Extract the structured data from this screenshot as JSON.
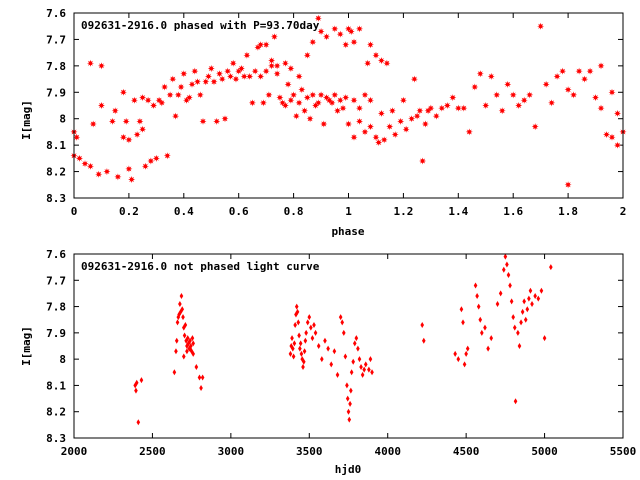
{
  "chart_data": [
    {
      "type": "scatter",
      "title": "092631-2916.0 phased with P=93.70day",
      "xlabel": "phase",
      "ylabel": "I[mag]",
      "xlim": [
        0,
        2
      ],
      "ylim": [
        8.3,
        7.6
      ],
      "y_inverted": true,
      "x_ticks": [
        "0",
        "0.2",
        "0.4",
        "0.6",
        "0.8",
        "1",
        "1.2",
        "1.4",
        "1.6",
        "1.8",
        "2"
      ],
      "y_ticks": [
        "7.6",
        "7.7",
        "7.8",
        "7.9",
        "8",
        "8.1",
        "8.2",
        "8.3"
      ],
      "marker": "filled-star",
      "color": "#ff0000",
      "points": [
        [
          0.0,
          8.05
        ],
        [
          0.0,
          8.14
        ],
        [
          0.01,
          8.07
        ],
        [
          0.02,
          8.15
        ],
        [
          0.04,
          8.17
        ],
        [
          0.06,
          8.18
        ],
        [
          0.06,
          7.79
        ],
        [
          0.07,
          8.02
        ],
        [
          0.09,
          8.21
        ],
        [
          0.1,
          7.8
        ],
        [
          0.1,
          7.95
        ],
        [
          0.12,
          8.2
        ],
        [
          0.14,
          8.01
        ],
        [
          0.15,
          7.97
        ],
        [
          0.16,
          8.22
        ],
        [
          0.18,
          7.9
        ],
        [
          0.18,
          8.07
        ],
        [
          0.19,
          8.01
        ],
        [
          0.2,
          8.19
        ],
        [
          0.2,
          8.08
        ],
        [
          0.21,
          8.23
        ],
        [
          0.22,
          7.93
        ],
        [
          0.23,
          8.06
        ],
        [
          0.24,
          8.01
        ],
        [
          0.25,
          7.92
        ],
        [
          0.25,
          8.04
        ],
        [
          0.26,
          8.18
        ],
        [
          0.27,
          7.93
        ],
        [
          0.28,
          8.16
        ],
        [
          0.29,
          7.95
        ],
        [
          0.3,
          8.15
        ],
        [
          0.31,
          7.93
        ],
        [
          0.32,
          7.94
        ],
        [
          0.33,
          7.88
        ],
        [
          0.34,
          8.14
        ],
        [
          0.35,
          7.91
        ],
        [
          0.36,
          7.85
        ],
        [
          0.37,
          7.99
        ],
        [
          0.38,
          7.91
        ],
        [
          0.39,
          7.88
        ],
        [
          0.4,
          7.83
        ],
        [
          0.41,
          7.93
        ],
        [
          0.42,
          7.92
        ],
        [
          0.43,
          7.87
        ],
        [
          0.44,
          7.82
        ],
        [
          0.45,
          7.86
        ],
        [
          0.46,
          7.91
        ],
        [
          0.47,
          8.01
        ],
        [
          0.48,
          7.86
        ],
        [
          0.49,
          7.84
        ],
        [
          0.5,
          7.81
        ],
        [
          0.51,
          7.86
        ],
        [
          0.52,
          8.01
        ],
        [
          0.53,
          7.83
        ],
        [
          0.54,
          7.85
        ],
        [
          0.55,
          8.0
        ],
        [
          0.56,
          7.82
        ],
        [
          0.57,
          7.84
        ],
        [
          0.58,
          7.79
        ],
        [
          0.59,
          7.85
        ],
        [
          0.6,
          7.82
        ],
        [
          0.61,
          7.81
        ],
        [
          0.62,
          7.84
        ],
        [
          0.63,
          7.76
        ],
        [
          0.64,
          7.84
        ],
        [
          0.65,
          7.94
        ],
        [
          0.66,
          7.82
        ],
        [
          0.67,
          7.73
        ],
        [
          0.68,
          7.72
        ],
        [
          0.69,
          7.94
        ],
        [
          0.7,
          7.72
        ],
        [
          0.71,
          7.91
        ],
        [
          0.72,
          7.8
        ],
        [
          0.73,
          7.69
        ],
        [
          0.74,
          7.8
        ],
        [
          0.75,
          7.92
        ],
        [
          0.76,
          7.94
        ],
        [
          0.77,
          7.95
        ],
        [
          0.78,
          7.87
        ],
        [
          0.79,
          7.93
        ],
        [
          0.8,
          7.91
        ],
        [
          0.81,
          7.99
        ],
        [
          0.82,
          7.94
        ],
        [
          0.83,
          7.89
        ],
        [
          0.84,
          7.97
        ],
        [
          0.85,
          7.92
        ],
        [
          0.86,
          8.0
        ],
        [
          0.87,
          7.91
        ],
        [
          0.88,
          7.95
        ],
        [
          0.89,
          7.94
        ],
        [
          0.9,
          7.91
        ],
        [
          0.91,
          8.02
        ],
        [
          0.92,
          7.92
        ],
        [
          0.93,
          7.93
        ],
        [
          0.94,
          7.94
        ],
        [
          0.95,
          7.91
        ],
        [
          0.96,
          7.97
        ],
        [
          0.97,
          7.93
        ],
        [
          0.98,
          7.96
        ],
        [
          0.99,
          7.92
        ],
        [
          0.68,
          7.84
        ],
        [
          0.7,
          7.82
        ],
        [
          0.72,
          7.78
        ],
        [
          0.74,
          7.83
        ],
        [
          0.77,
          7.79
        ],
        [
          0.79,
          7.81
        ],
        [
          0.82,
          7.84
        ],
        [
          0.85,
          7.76
        ],
        [
          0.87,
          7.71
        ],
        [
          0.89,
          7.62
        ],
        [
          0.9,
          7.67
        ],
        [
          0.92,
          7.69
        ],
        [
          0.95,
          7.66
        ],
        [
          0.97,
          7.68
        ],
        [
          0.99,
          7.72
        ],
        [
          1.0,
          7.66
        ],
        [
          1.01,
          7.67
        ],
        [
          1.02,
          7.71
        ],
        [
          1.04,
          7.66
        ],
        [
          1.07,
          7.79
        ],
        [
          1.08,
          7.72
        ],
        [
          1.1,
          7.76
        ],
        [
          1.12,
          7.78
        ],
        [
          1.14,
          7.79
        ],
        [
          1.0,
          8.02
        ],
        [
          1.02,
          8.07
        ],
        [
          1.04,
          8.01
        ],
        [
          1.06,
          8.05
        ],
        [
          1.08,
          8.03
        ],
        [
          1.1,
          8.07
        ],
        [
          1.11,
          8.09
        ],
        [
          1.13,
          8.08
        ],
        [
          1.15,
          8.03
        ],
        [
          1.17,
          8.06
        ],
        [
          1.19,
          8.01
        ],
        [
          1.21,
          8.04
        ],
        [
          1.23,
          8.0
        ],
        [
          1.25,
          7.99
        ],
        [
          1.27,
          8.16
        ],
        [
          1.29,
          7.97
        ],
        [
          1.02,
          7.93
        ],
        [
          1.04,
          7.96
        ],
        [
          1.06,
          7.91
        ],
        [
          1.08,
          7.93
        ],
        [
          1.12,
          7.98
        ],
        [
          1.16,
          7.97
        ],
        [
          1.2,
          7.93
        ],
        [
          1.24,
          7.85
        ],
        [
          1.26,
          7.97
        ],
        [
          1.28,
          8.02
        ],
        [
          1.3,
          7.96
        ],
        [
          1.32,
          7.99
        ],
        [
          1.34,
          7.96
        ],
        [
          1.36,
          7.95
        ],
        [
          1.38,
          7.92
        ],
        [
          1.4,
          7.96
        ],
        [
          1.42,
          7.96
        ],
        [
          1.44,
          8.05
        ],
        [
          1.46,
          7.88
        ],
        [
          1.48,
          7.83
        ],
        [
          1.5,
          7.95
        ],
        [
          1.52,
          7.84
        ],
        [
          1.54,
          7.91
        ],
        [
          1.56,
          7.97
        ],
        [
          1.58,
          7.87
        ],
        [
          1.6,
          7.91
        ],
        [
          1.62,
          7.95
        ],
        [
          1.64,
          7.93
        ],
        [
          1.66,
          7.91
        ],
        [
          1.68,
          8.03
        ],
        [
          1.7,
          7.65
        ],
        [
          1.72,
          7.87
        ],
        [
          1.74,
          7.94
        ],
        [
          1.76,
          7.84
        ],
        [
          1.78,
          7.82
        ],
        [
          1.8,
          8.25
        ],
        [
          1.8,
          7.89
        ],
        [
          1.82,
          7.91
        ],
        [
          1.84,
          7.82
        ],
        [
          1.86,
          7.85
        ],
        [
          1.88,
          7.82
        ],
        [
          1.9,
          7.92
        ],
        [
          1.92,
          7.96
        ],
        [
          1.94,
          8.06
        ],
        [
          1.96,
          8.07
        ],
        [
          1.98,
          8.1
        ],
        [
          2.0,
          8.05
        ],
        [
          1.98,
          7.98
        ],
        [
          1.96,
          7.9
        ],
        [
          1.92,
          7.8
        ]
      ]
    },
    {
      "type": "scatter",
      "title": "092631-2916.0 not phased light curve",
      "xlabel": "hjd0",
      "ylabel": "I[mag]",
      "xlim": [
        2000,
        5500
      ],
      "ylim": [
        8.3,
        7.6
      ],
      "y_inverted": true,
      "x_ticks": [
        "2000",
        "2500",
        "3000",
        "3500",
        "4000",
        "4500",
        "5000",
        "5500"
      ],
      "y_ticks": [
        "7.6",
        "7.7",
        "7.8",
        "7.9",
        "8",
        "8.1",
        "8.2",
        "8.3"
      ],
      "marker": "filled-diamond",
      "color": "#ff0000",
      "points": [
        [
          2390,
          8.1
        ],
        [
          2395,
          8.12
        ],
        [
          2400,
          8.09
        ],
        [
          2410,
          8.24
        ],
        [
          2430,
          8.08
        ],
        [
          2640,
          8.05
        ],
        [
          2650,
          7.97
        ],
        [
          2655,
          7.93
        ],
        [
          2660,
          7.86
        ],
        [
          2665,
          7.84
        ],
        [
          2670,
          7.83
        ],
        [
          2675,
          7.79
        ],
        [
          2680,
          7.82
        ],
        [
          2685,
          7.76
        ],
        [
          2690,
          7.81
        ],
        [
          2695,
          7.84
        ],
        [
          2700,
          7.88
        ],
        [
          2705,
          7.91
        ],
        [
          2710,
          7.87
        ],
        [
          2715,
          7.93
        ],
        [
          2720,
          7.95
        ],
        [
          2725,
          7.92
        ],
        [
          2730,
          7.94
        ],
        [
          2735,
          7.96
        ],
        [
          2740,
          7.93
        ],
        [
          2745,
          7.95
        ],
        [
          2750,
          7.97
        ],
        [
          2755,
          7.92
        ],
        [
          2760,
          7.94
        ],
        [
          2700,
          7.99
        ],
        [
          2720,
          7.97
        ],
        [
          2740,
          7.96
        ],
        [
          2760,
          7.98
        ],
        [
          2780,
          8.03
        ],
        [
          2800,
          8.07
        ],
        [
          2810,
          8.11
        ],
        [
          2820,
          8.07
        ],
        [
          3380,
          7.98
        ],
        [
          3385,
          7.95
        ],
        [
          3390,
          7.92
        ],
        [
          3395,
          7.96
        ],
        [
          3400,
          7.99
        ],
        [
          3405,
          7.94
        ],
        [
          3410,
          7.87
        ],
        [
          3415,
          7.83
        ],
        [
          3420,
          7.8
        ],
        [
          3425,
          7.82
        ],
        [
          3430,
          7.86
        ],
        [
          3435,
          7.91
        ],
        [
          3440,
          7.96
        ],
        [
          3445,
          7.94
        ],
        [
          3450,
          7.98
        ],
        [
          3455,
          8.0
        ],
        [
          3460,
          8.03
        ],
        [
          3465,
          8.01
        ],
        [
          3470,
          7.97
        ],
        [
          3475,
          7.93
        ],
        [
          3480,
          7.9
        ],
        [
          3490,
          7.86
        ],
        [
          3500,
          7.84
        ],
        [
          3510,
          7.88
        ],
        [
          3520,
          7.92
        ],
        [
          3530,
          7.87
        ],
        [
          3540,
          7.9
        ],
        [
          3560,
          7.95
        ],
        [
          3580,
          8.0
        ],
        [
          3600,
          7.93
        ],
        [
          3620,
          7.96
        ],
        [
          3640,
          8.02
        ],
        [
          3660,
          7.97
        ],
        [
          3680,
          8.06
        ],
        [
          3700,
          7.84
        ],
        [
          3710,
          7.86
        ],
        [
          3720,
          7.9
        ],
        [
          3730,
          7.99
        ],
        [
          3740,
          8.1
        ],
        [
          3745,
          8.15
        ],
        [
          3750,
          8.2
        ],
        [
          3755,
          8.23
        ],
        [
          3760,
          8.17
        ],
        [
          3765,
          8.12
        ],
        [
          3770,
          8.05
        ],
        [
          3780,
          8.01
        ],
        [
          3790,
          7.94
        ],
        [
          3800,
          7.92
        ],
        [
          3810,
          7.96
        ],
        [
          3820,
          8.0
        ],
        [
          3830,
          8.03
        ],
        [
          3840,
          8.06
        ],
        [
          3850,
          8.04
        ],
        [
          3860,
          8.02
        ],
        [
          3880,
          8.04
        ],
        [
          3890,
          8.0
        ],
        [
          3900,
          8.05
        ],
        [
          4220,
          7.87
        ],
        [
          4230,
          7.93
        ],
        [
          4430,
          7.98
        ],
        [
          4450,
          8.0
        ],
        [
          4470,
          7.81
        ],
        [
          4480,
          7.86
        ],
        [
          4490,
          8.02
        ],
        [
          4500,
          7.98
        ],
        [
          4510,
          7.96
        ],
        [
          4560,
          7.72
        ],
        [
          4570,
          7.76
        ],
        [
          4580,
          7.8
        ],
        [
          4590,
          7.85
        ],
        [
          4600,
          7.9
        ],
        [
          4620,
          7.88
        ],
        [
          4640,
          7.96
        ],
        [
          4660,
          7.92
        ],
        [
          4700,
          7.79
        ],
        [
          4720,
          7.75
        ],
        [
          4740,
          7.66
        ],
        [
          4750,
          7.61
        ],
        [
          4760,
          7.64
        ],
        [
          4770,
          7.68
        ],
        [
          4780,
          7.72
        ],
        [
          4790,
          7.78
        ],
        [
          4800,
          7.84
        ],
        [
          4810,
          7.88
        ],
        [
          4815,
          8.16
        ],
        [
          4830,
          7.9
        ],
        [
          4840,
          7.95
        ],
        [
          4850,
          7.86
        ],
        [
          4860,
          7.82
        ],
        [
          4870,
          7.78
        ],
        [
          4880,
          7.85
        ],
        [
          4890,
          7.81
        ],
        [
          4900,
          7.77
        ],
        [
          4910,
          7.74
        ],
        [
          4920,
          7.79
        ],
        [
          4940,
          7.76
        ],
        [
          4960,
          7.77
        ],
        [
          4980,
          7.74
        ],
        [
          5000,
          7.92
        ],
        [
          5040,
          7.65
        ]
      ]
    }
  ]
}
